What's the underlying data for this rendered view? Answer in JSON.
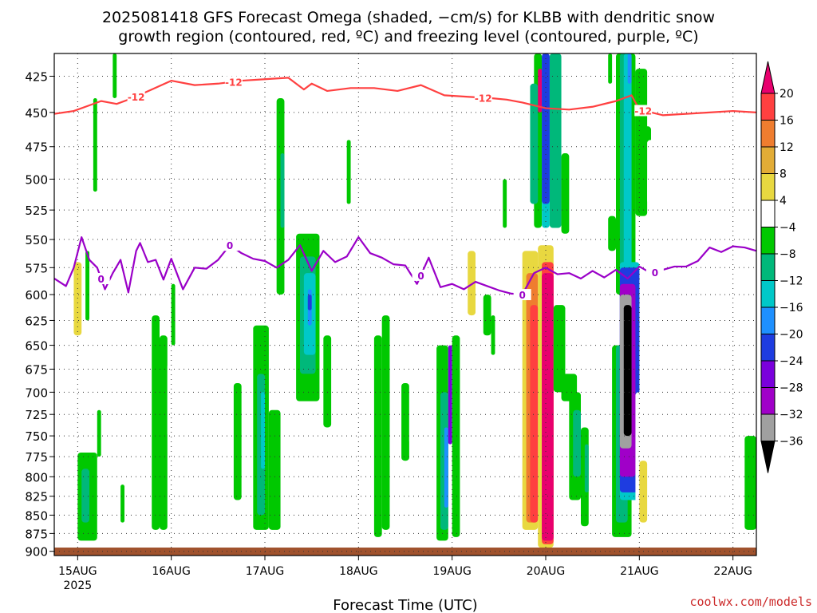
{
  "title": {
    "line1": "2025081418 GFS Forecast Omega (shaded, −cm/s) for KLBB with dendritic snow",
    "line2": "growth region (contoured, red, ºC) and freezing level (contoured, purple, ºC)"
  },
  "watermark": "coolwx.com/models",
  "colors": {
    "watermark": "#cc2a2a",
    "dgz_line": "#ff4040",
    "freezing_line": "#9a00c8",
    "terrain": "#a0522d"
  },
  "chart_data": {
    "type": "heatmap",
    "xlabel": "Forecast Time (UTC)",
    "x_ticks": [
      "15AUG",
      "16AUG",
      "17AUG",
      "18AUG",
      "19AUG",
      "20AUG",
      "21AUG",
      "22AUG"
    ],
    "x_tick_year": "2025",
    "x_tick_hours": [
      6,
      30,
      54,
      78,
      102,
      126,
      150,
      174
    ],
    "x_range_hours": [
      0,
      180
    ],
    "y_ticks": [
      425,
      450,
      475,
      500,
      525,
      550,
      575,
      600,
      625,
      650,
      675,
      700,
      725,
      750,
      775,
      800,
      825,
      850,
      875,
      900
    ],
    "y_range_hPa": [
      410,
      906
    ],
    "y_scale": "log-pressure, reversed",
    "grid": true,
    "colorbar": {
      "labels": [
        "20",
        "16",
        "12",
        "8",
        "4",
        "−4",
        "−8",
        "−12",
        "−16",
        "−20",
        "−24",
        "−28",
        "−32",
        "−36"
      ],
      "fills": [
        "#ff4040",
        "#ef7d2f",
        "#e2ac36",
        "#e8d840",
        "#ffffff",
        "#00c800",
        "#00b87a",
        "#00c8c8",
        "#1e90ff",
        "#1e3ce0",
        "#7a00dc",
        "#a000c8",
        "#a0a0a0",
        "#000000"
      ],
      "top_arrow": "#e8006e",
      "bottom_arrow": "#000000"
    },
    "series": [
      {
        "name": "-12",
        "kind": "contour",
        "color": "#ff4040",
        "labels_at_hours": [
          21,
          46,
          110,
          151
        ],
        "x": [
          0,
          5,
          9,
          12,
          16,
          20,
          25,
          30,
          36,
          42,
          48,
          54,
          60,
          64,
          66,
          70,
          76,
          82,
          88,
          94,
          100,
          106,
          112,
          116,
          120,
          126,
          132,
          138,
          144,
          148,
          150,
          156,
          162,
          168,
          174,
          180
        ],
        "y": [
          451,
          449,
          445,
          442,
          444,
          440,
          434,
          428,
          431,
          430,
          428,
          427,
          426,
          434,
          430,
          435,
          433,
          433,
          435,
          431,
          438,
          439,
          440,
          441,
          443,
          447,
          448,
          446,
          442,
          438,
          448,
          452,
          451,
          450,
          449,
          450
        ]
      },
      {
        "name": "0",
        "kind": "contour",
        "color": "#9a00c8",
        "labels_at_hours": [
          12,
          45,
          94,
          120,
          154
        ],
        "x": [
          0,
          3,
          5,
          7,
          9,
          11,
          13,
          15,
          17,
          19,
          21,
          22,
          24,
          26,
          28,
          30,
          33,
          36,
          39,
          42,
          45,
          48,
          51,
          54,
          57,
          60,
          63,
          66,
          69,
          72,
          75,
          78,
          81,
          84,
          87,
          90,
          93,
          96,
          99,
          102,
          105,
          108,
          111,
          114,
          117,
          120,
          123,
          126,
          129,
          132,
          135,
          138,
          141,
          144,
          147,
          150,
          153,
          156,
          159,
          162,
          165,
          168,
          171,
          174,
          177,
          180
        ],
        "y": [
          585,
          592,
          575,
          548,
          568,
          575,
          595,
          580,
          568,
          598,
          560,
          553,
          570,
          568,
          586,
          567,
          595,
          575,
          576,
          568,
          555,
          562,
          567,
          569,
          575,
          568,
          555,
          578,
          560,
          570,
          565,
          548,
          562,
          566,
          572,
          573,
          590,
          566,
          593,
          590,
          595,
          588,
          592,
          596,
          599,
          600,
          580,
          575,
          581,
          580,
          585,
          578,
          584,
          577,
          585,
          574,
          580,
          577,
          574,
          574,
          569,
          557,
          561,
          556,
          557,
          560
        ]
      }
    ],
    "cells": [
      {
        "h0": 4,
        "h1": 8,
        "p0": 540,
        "p1": 690,
        "cat": "4"
      },
      {
        "h0": 5,
        "h1": 7,
        "p0": 570,
        "p1": 640,
        "cat": "8"
      },
      {
        "h0": 8,
        "h1": 9,
        "p0": 560,
        "p1": 625,
        "cat": "-4"
      },
      {
        "h0": 9,
        "h1": 10,
        "p0": 410,
        "p1": 470,
        "cat": "4"
      },
      {
        "h0": 10,
        "h1": 11,
        "p0": 440,
        "p1": 510,
        "cat": "-4"
      },
      {
        "h0": 6,
        "h1": 11,
        "p0": 770,
        "p1": 885,
        "cat": "-4"
      },
      {
        "h0": 7,
        "h1": 9,
        "p0": 790,
        "p1": 860,
        "cat": "-8"
      },
      {
        "h0": 11,
        "h1": 12,
        "p0": 720,
        "p1": 775,
        "cat": "-4"
      },
      {
        "h0": 15,
        "h1": 16,
        "p0": 410,
        "p1": 440,
        "cat": "-4"
      },
      {
        "h0": 17,
        "h1": 18,
        "p0": 810,
        "p1": 860,
        "cat": "-4"
      },
      {
        "h0": 23,
        "h1": 25,
        "p0": 650,
        "p1": 850,
        "cat": "4"
      },
      {
        "h0": 25,
        "h1": 27,
        "p0": 620,
        "p1": 870,
        "cat": "-4"
      },
      {
        "h0": 27,
        "h1": 29,
        "p0": 640,
        "p1": 870,
        "cat": "-4"
      },
      {
        "h0": 29,
        "h1": 30,
        "p0": 670,
        "p1": 750,
        "cat": "4"
      },
      {
        "h0": 28,
        "h1": 30,
        "p0": 520,
        "p1": 600,
        "cat": "4"
      },
      {
        "h0": 30,
        "h1": 31,
        "p0": 590,
        "p1": 650,
        "cat": "-4"
      },
      {
        "h0": 36,
        "h1": 37,
        "p0": 410,
        "p1": 440,
        "cat": "4"
      },
      {
        "h0": 38,
        "h1": 39,
        "p0": 460,
        "p1": 520,
        "cat": "4"
      },
      {
        "h0": 46,
        "h1": 48,
        "p0": 690,
        "p1": 830,
        "cat": "-4"
      },
      {
        "h0": 48,
        "h1": 49,
        "p0": 540,
        "p1": 580,
        "cat": "4"
      },
      {
        "h0": 51,
        "h1": 55,
        "p0": 630,
        "p1": 870,
        "cat": "-4"
      },
      {
        "h0": 52,
        "h1": 54,
        "p0": 680,
        "p1": 850,
        "cat": "-8"
      },
      {
        "h0": 53,
        "h1": 54,
        "p0": 700,
        "p1": 790,
        "cat": "-12"
      },
      {
        "h0": 55,
        "h1": 58,
        "p0": 720,
        "p1": 870,
        "cat": "-4"
      },
      {
        "h0": 56,
        "h1": 57,
        "p0": 430,
        "p1": 540,
        "cat": "4"
      },
      {
        "h0": 57,
        "h1": 59,
        "p0": 410,
        "p1": 440,
        "cat": "4"
      },
      {
        "h0": 57,
        "h1": 59,
        "p0": 440,
        "p1": 600,
        "cat": "-4"
      },
      {
        "h0": 58,
        "h1": 59,
        "p0": 480,
        "p1": 540,
        "cat": "-8"
      },
      {
        "h0": 60,
        "h1": 62,
        "p0": 540,
        "p1": 730,
        "cat": "4"
      },
      {
        "h0": 62,
        "h1": 68,
        "p0": 545,
        "p1": 710,
        "cat": "-4"
      },
      {
        "h0": 63,
        "h1": 67,
        "p0": 565,
        "p1": 680,
        "cat": "-8"
      },
      {
        "h0": 64,
        "h1": 67,
        "p0": 580,
        "p1": 660,
        "cat": "-12"
      },
      {
        "h0": 65,
        "h1": 66,
        "p0": 595,
        "p1": 630,
        "cat": "-16"
      },
      {
        "h0": 65,
        "h1": 66,
        "p0": 600,
        "p1": 615,
        "cat": "-20"
      },
      {
        "h0": 66,
        "h1": 68,
        "p0": 410,
        "p1": 440,
        "cat": "4"
      },
      {
        "h0": 66,
        "h1": 68,
        "p0": 800,
        "p1": 850,
        "cat": "4"
      },
      {
        "h0": 69,
        "h1": 71,
        "p0": 770,
        "p1": 840,
        "cat": "4"
      },
      {
        "h0": 69,
        "h1": 71,
        "p0": 640,
        "p1": 740,
        "cat": "-4"
      },
      {
        "h0": 75,
        "h1": 76,
        "p0": 470,
        "p1": 520,
        "cat": "-4"
      },
      {
        "h0": 77,
        "h1": 79,
        "p0": 480,
        "p1": 540,
        "cat": "4"
      },
      {
        "h0": 80,
        "h1": 82,
        "p0": 610,
        "p1": 700,
        "cat": "4"
      },
      {
        "h0": 82,
        "h1": 84,
        "p0": 640,
        "p1": 880,
        "cat": "-4"
      },
      {
        "h0": 84,
        "h1": 86,
        "p0": 620,
        "p1": 870,
        "cat": "-4"
      },
      {
        "h0": 87,
        "h1": 89,
        "p0": 680,
        "p1": 820,
        "cat": "4"
      },
      {
        "h0": 89,
        "h1": 91,
        "p0": 690,
        "p1": 780,
        "cat": "-4"
      },
      {
        "h0": 91,
        "h1": 94,
        "p0": 680,
        "p1": 760,
        "cat": "4"
      },
      {
        "h0": 96,
        "h1": 97,
        "p0": 460,
        "p1": 540,
        "cat": "4"
      },
      {
        "h0": 98,
        "h1": 101,
        "p0": 650,
        "p1": 885,
        "cat": "-4"
      },
      {
        "h0": 99,
        "h1": 101,
        "p0": 700,
        "p1": 870,
        "cat": "-8"
      },
      {
        "h0": 100,
        "h1": 101,
        "p0": 740,
        "p1": 840,
        "cat": "-16"
      },
      {
        "h0": 101,
        "h1": 102,
        "p0": 650,
        "p1": 760,
        "cat": "-24"
      },
      {
        "h0": 102,
        "h1": 104,
        "p0": 640,
        "p1": 880,
        "cat": "-4"
      },
      {
        "h0": 104,
        "h1": 107,
        "p0": 540,
        "p1": 680,
        "cat": "4"
      },
      {
        "h0": 106,
        "h1": 108,
        "p0": 560,
        "p1": 620,
        "cat": "8"
      },
      {
        "h0": 104,
        "h1": 106,
        "p0": 700,
        "p1": 780,
        "cat": "4"
      },
      {
        "h0": 108,
        "h1": 110,
        "p0": 600,
        "p1": 660,
        "cat": "4"
      },
      {
        "h0": 110,
        "h1": 112,
        "p0": 600,
        "p1": 640,
        "cat": "-4"
      },
      {
        "h0": 111,
        "h1": 112,
        "p0": 430,
        "p1": 540,
        "cat": "4"
      },
      {
        "h0": 112,
        "h1": 113,
        "p0": 620,
        "p1": 660,
        "cat": "-4"
      },
      {
        "h0": 113,
        "h1": 115,
        "p0": 750,
        "p1": 790,
        "cat": "4"
      },
      {
        "h0": 115,
        "h1": 116,
        "p0": 500,
        "p1": 540,
        "cat": "-4"
      },
      {
        "h0": 117,
        "h1": 119,
        "p0": 410,
        "p1": 460,
        "cat": "4"
      },
      {
        "h0": 118,
        "h1": 120,
        "p0": 560,
        "p1": 780,
        "cat": "4"
      },
      {
        "h0": 120,
        "h1": 124,
        "p0": 560,
        "p1": 870,
        "cat": "8"
      },
      {
        "h0": 121,
        "h1": 124,
        "p0": 580,
        "p1": 860,
        "cat": "16"
      },
      {
        "h0": 122,
        "h1": 124,
        "p0": 610,
        "p1": 860,
        "cat": "20"
      },
      {
        "h0": 124,
        "h1": 128,
        "p0": 555,
        "p1": 895,
        "cat": "8"
      },
      {
        "h0": 125,
        "h1": 128,
        "p0": 570,
        "p1": 890,
        "cat": "20"
      },
      {
        "h0": 125,
        "h1": 128,
        "p0": 580,
        "p1": 885,
        "cat": "24"
      },
      {
        "h0": 123,
        "h1": 125,
        "p0": 410,
        "p1": 540,
        "cat": "-4"
      },
      {
        "h0": 125,
        "h1": 127,
        "p0": 410,
        "p1": 540,
        "cat": "-12"
      },
      {
        "h0": 122,
        "h1": 124,
        "p0": 430,
        "p1": 520,
        "cat": "-8"
      },
      {
        "h0": 124,
        "h1": 125,
        "p0": 420,
        "p1": 450,
        "cat": "24"
      },
      {
        "h0": 127,
        "h1": 130,
        "p0": 410,
        "p1": 540,
        "cat": "-8"
      },
      {
        "h0": 130,
        "h1": 132,
        "p0": 480,
        "p1": 545,
        "cat": "-4"
      },
      {
        "h0": 125,
        "h1": 127,
        "p0": 410,
        "p1": 520,
        "cat": "-20"
      },
      {
        "h0": 128,
        "h1": 131,
        "p0": 610,
        "p1": 700,
        "cat": "-4"
      },
      {
        "h0": 130,
        "h1": 134,
        "p0": 680,
        "p1": 710,
        "cat": "-4"
      },
      {
        "h0": 132,
        "h1": 135,
        "p0": 700,
        "p1": 830,
        "cat": "-4"
      },
      {
        "h0": 133,
        "h1": 135,
        "p0": 720,
        "p1": 800,
        "cat": "-8"
      },
      {
        "h0": 135,
        "h1": 137,
        "p0": 740,
        "p1": 865,
        "cat": "-4"
      },
      {
        "h0": 136,
        "h1": 137,
        "p0": 760,
        "p1": 820,
        "cat": "-8"
      },
      {
        "h0": 135,
        "h1": 137,
        "p0": 535,
        "p1": 610,
        "cat": "4"
      },
      {
        "h0": 139,
        "h1": 141,
        "p0": 480,
        "p1": 550,
        "cat": "4"
      },
      {
        "h0": 142,
        "h1": 143,
        "p0": 410,
        "p1": 430,
        "cat": "-4"
      },
      {
        "h0": 142,
        "h1": 144,
        "p0": 530,
        "p1": 560,
        "cat": "-4"
      },
      {
        "h0": 143,
        "h1": 148,
        "p0": 650,
        "p1": 880,
        "cat": "-4"
      },
      {
        "h0": 144,
        "h1": 147,
        "p0": 650,
        "p1": 860,
        "cat": "-8"
      },
      {
        "h0": 144,
        "h1": 149,
        "p0": 410,
        "p1": 600,
        "cat": "-4"
      },
      {
        "h0": 145,
        "h1": 148,
        "p0": 410,
        "p1": 590,
        "cat": "-8"
      },
      {
        "h0": 146,
        "h1": 148,
        "p0": 410,
        "p1": 580,
        "cat": "-12"
      },
      {
        "h0": 147,
        "h1": 148,
        "p0": 410,
        "p1": 430,
        "cat": "-16"
      },
      {
        "h0": 145,
        "h1": 150,
        "p0": 570,
        "p1": 830,
        "cat": "-12"
      },
      {
        "h0": 145,
        "h1": 150,
        "p0": 575,
        "p1": 820,
        "cat": "-20"
      },
      {
        "h0": 145,
        "h1": 149,
        "p0": 590,
        "p1": 800,
        "cat": "-28"
      },
      {
        "h0": 145,
        "h1": 148,
        "p0": 600,
        "p1": 765,
        "cat": "-32"
      },
      {
        "h0": 146,
        "h1": 148,
        "p0": 610,
        "p1": 750,
        "cat": "-36"
      },
      {
        "h0": 149,
        "h1": 153,
        "p0": 700,
        "p1": 870,
        "cat": "4"
      },
      {
        "h0": 150,
        "h1": 152,
        "p0": 780,
        "p1": 860,
        "cat": "8"
      },
      {
        "h0": 149,
        "h1": 152,
        "p0": 420,
        "p1": 530,
        "cat": "-4"
      },
      {
        "h0": 151,
        "h1": 153,
        "p0": 460,
        "p1": 500,
        "cat": "-4"
      },
      {
        "h0": 152,
        "h1": 154,
        "p0": 470,
        "p1": 520,
        "cat": "4"
      },
      {
        "h0": 155,
        "h1": 157,
        "p0": 750,
        "p1": 790,
        "cat": "4"
      },
      {
        "h0": 163,
        "h1": 165,
        "p0": 410,
        "p1": 440,
        "cat": "4"
      },
      {
        "h0": 167,
        "h1": 171,
        "p0": 410,
        "p1": 460,
        "cat": "4"
      },
      {
        "h0": 177,
        "h1": 180,
        "p0": 750,
        "p1": 870,
        "cat": "-4"
      }
    ]
  }
}
